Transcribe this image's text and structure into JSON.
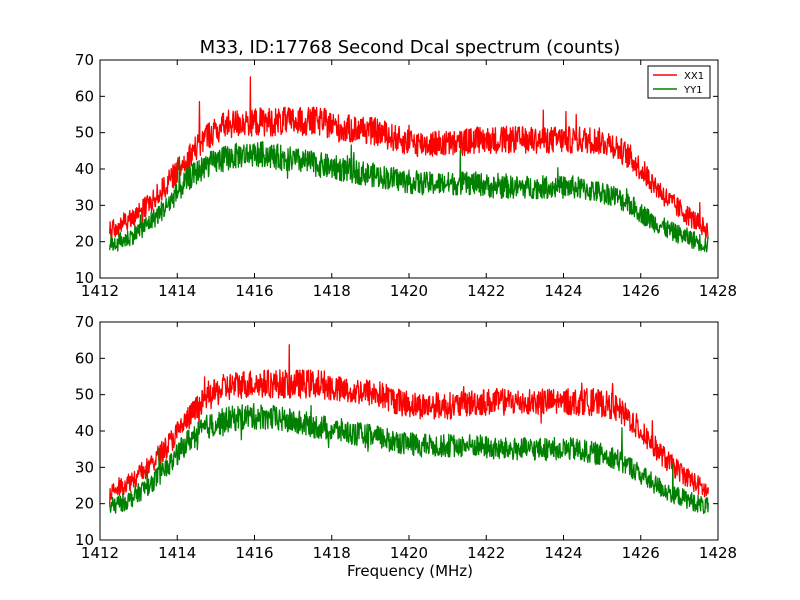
{
  "chart_data": [
    {
      "type": "line",
      "title": "M33, ID:17768 Second Dcal spectrum (counts)",
      "xlabel": "",
      "ylabel": "",
      "xlim": [
        1412,
        1428
      ],
      "ylim": [
        10,
        70
      ],
      "xticks": [
        1412,
        1414,
        1416,
        1418,
        1420,
        1422,
        1424,
        1426,
        1428
      ],
      "yticks": [
        10,
        20,
        30,
        40,
        50,
        60,
        70
      ],
      "legend": {
        "placement": "top-right",
        "entries": [
          "XX1",
          "YY1"
        ]
      },
      "series": [
        {
          "name": "XX1",
          "color": "#ff0000",
          "x": [
            1412.25,
            1412.75,
            1413.25,
            1413.75,
            1414.25,
            1414.75,
            1415.25,
            1415.75,
            1416.25,
            1416.75,
            1417.25,
            1417.75,
            1418.25,
            1418.75,
            1419.25,
            1419.75,
            1420.25,
            1420.75,
            1421.25,
            1421.75,
            1422.25,
            1422.75,
            1423.25,
            1423.75,
            1424.25,
            1424.75,
            1425.25,
            1425.75,
            1426.25,
            1426.75,
            1427.25,
            1427.75
          ],
          "values": [
            23,
            26,
            30,
            36,
            43,
            49,
            52,
            53,
            53,
            53,
            53,
            53,
            51,
            51,
            50,
            48,
            47,
            47,
            47,
            48,
            48,
            48,
            48,
            48,
            48,
            48,
            47,
            43,
            37,
            31,
            27,
            23
          ]
        },
        {
          "name": "YY1",
          "color": "#008000",
          "x": [
            1412.25,
            1412.75,
            1413.25,
            1413.75,
            1414.25,
            1414.75,
            1415.25,
            1415.75,
            1416.25,
            1416.75,
            1417.25,
            1417.75,
            1418.25,
            1418.75,
            1419.25,
            1419.75,
            1420.25,
            1420.75,
            1421.25,
            1421.75,
            1422.25,
            1422.75,
            1423.25,
            1423.75,
            1424.25,
            1424.75,
            1425.25,
            1425.75,
            1426.25,
            1426.75,
            1427.25,
            1427.75
          ],
          "values": [
            19,
            21,
            25,
            30,
            37,
            41,
            43,
            44,
            44,
            43,
            42,
            41,
            40,
            39,
            38,
            37,
            36,
            36,
            36,
            36,
            35,
            35,
            35,
            35,
            35,
            34,
            33,
            30,
            26,
            23,
            21,
            19
          ]
        }
      ]
    },
    {
      "type": "line",
      "title": "",
      "xlabel": "Frequency (MHz)",
      "ylabel": "",
      "xlim": [
        1412,
        1428
      ],
      "ylim": [
        10,
        70
      ],
      "xticks": [
        1412,
        1414,
        1416,
        1418,
        1420,
        1422,
        1424,
        1426,
        1428
      ],
      "yticks": [
        10,
        20,
        30,
        40,
        50,
        60,
        70
      ],
      "legend": null,
      "series": [
        {
          "color": "#ff0000",
          "x": [
            1412.25,
            1412.75,
            1413.25,
            1413.75,
            1414.25,
            1414.75,
            1415.25,
            1415.75,
            1416.25,
            1416.75,
            1417.25,
            1417.75,
            1418.25,
            1418.75,
            1419.25,
            1419.75,
            1420.25,
            1420.75,
            1421.25,
            1421.75,
            1422.25,
            1422.75,
            1423.25,
            1423.75,
            1424.25,
            1424.75,
            1425.25,
            1425.75,
            1426.25,
            1426.75,
            1427.25,
            1427.75
          ],
          "values": [
            23,
            26,
            30,
            36,
            43,
            49,
            52,
            53,
            53,
            53,
            53,
            53,
            51,
            51,
            50,
            48,
            47,
            47,
            47,
            48,
            48,
            48,
            48,
            48,
            48,
            48,
            47,
            43,
            37,
            31,
            27,
            23
          ]
        },
        {
          "color": "#008000",
          "x": [
            1412.25,
            1412.75,
            1413.25,
            1413.75,
            1414.25,
            1414.75,
            1415.25,
            1415.75,
            1416.25,
            1416.75,
            1417.25,
            1417.75,
            1418.25,
            1418.75,
            1419.25,
            1419.75,
            1420.25,
            1420.75,
            1421.25,
            1421.75,
            1422.25,
            1422.75,
            1423.25,
            1423.75,
            1424.25,
            1424.75,
            1425.25,
            1425.75,
            1426.25,
            1426.75,
            1427.25,
            1427.75
          ],
          "values": [
            19,
            21,
            25,
            30,
            37,
            41,
            43,
            44,
            44,
            43,
            42,
            41,
            40,
            39,
            38,
            37,
            36,
            36,
            36,
            36,
            35,
            35,
            35,
            35,
            35,
            34,
            33,
            30,
            26,
            23,
            21,
            19
          ]
        }
      ]
    }
  ]
}
